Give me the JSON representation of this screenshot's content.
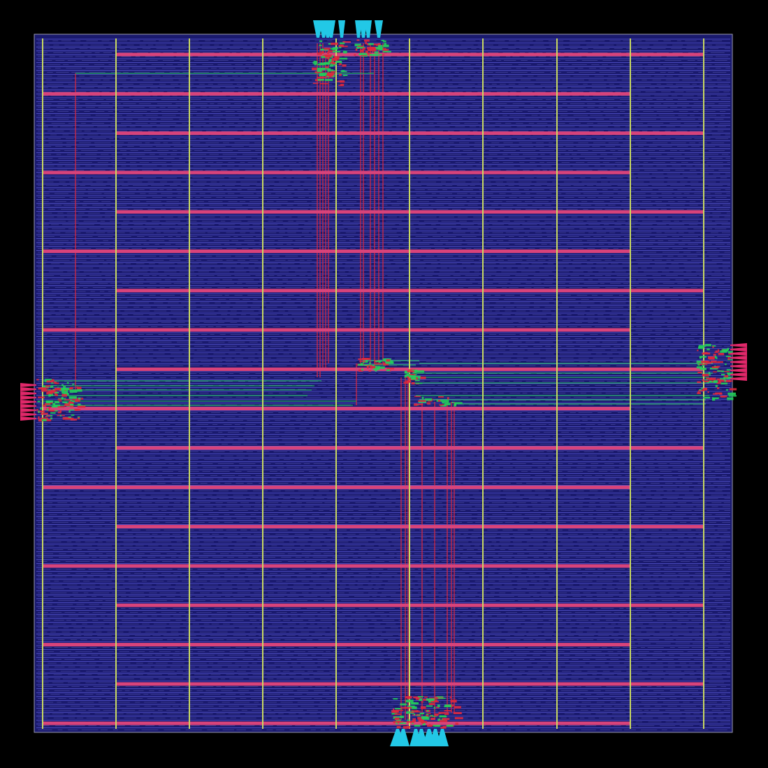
{
  "layout_view": {
    "description_free": true,
    "colors": {
      "background": "#000000",
      "die_fill": "#1a1a6e",
      "die_border": "#9a9ab0",
      "cell_rows": "#5a5ad8",
      "cell_rows_light": "#8f8ff0",
      "power_horizontal": "#d8437a",
      "power_vertical": "#c8d860",
      "route_red": "#e0283c",
      "route_green": "#22d05a",
      "pin_cyan": "#22c8e6",
      "pin_magenta": "#e0286a"
    },
    "pin_groups": [
      {
        "name": "top-pins",
        "side": "top"
      },
      {
        "name": "bottom-pins",
        "side": "bottom"
      },
      {
        "name": "left-pins",
        "side": "left"
      },
      {
        "name": "right-pins",
        "side": "right"
      }
    ]
  }
}
